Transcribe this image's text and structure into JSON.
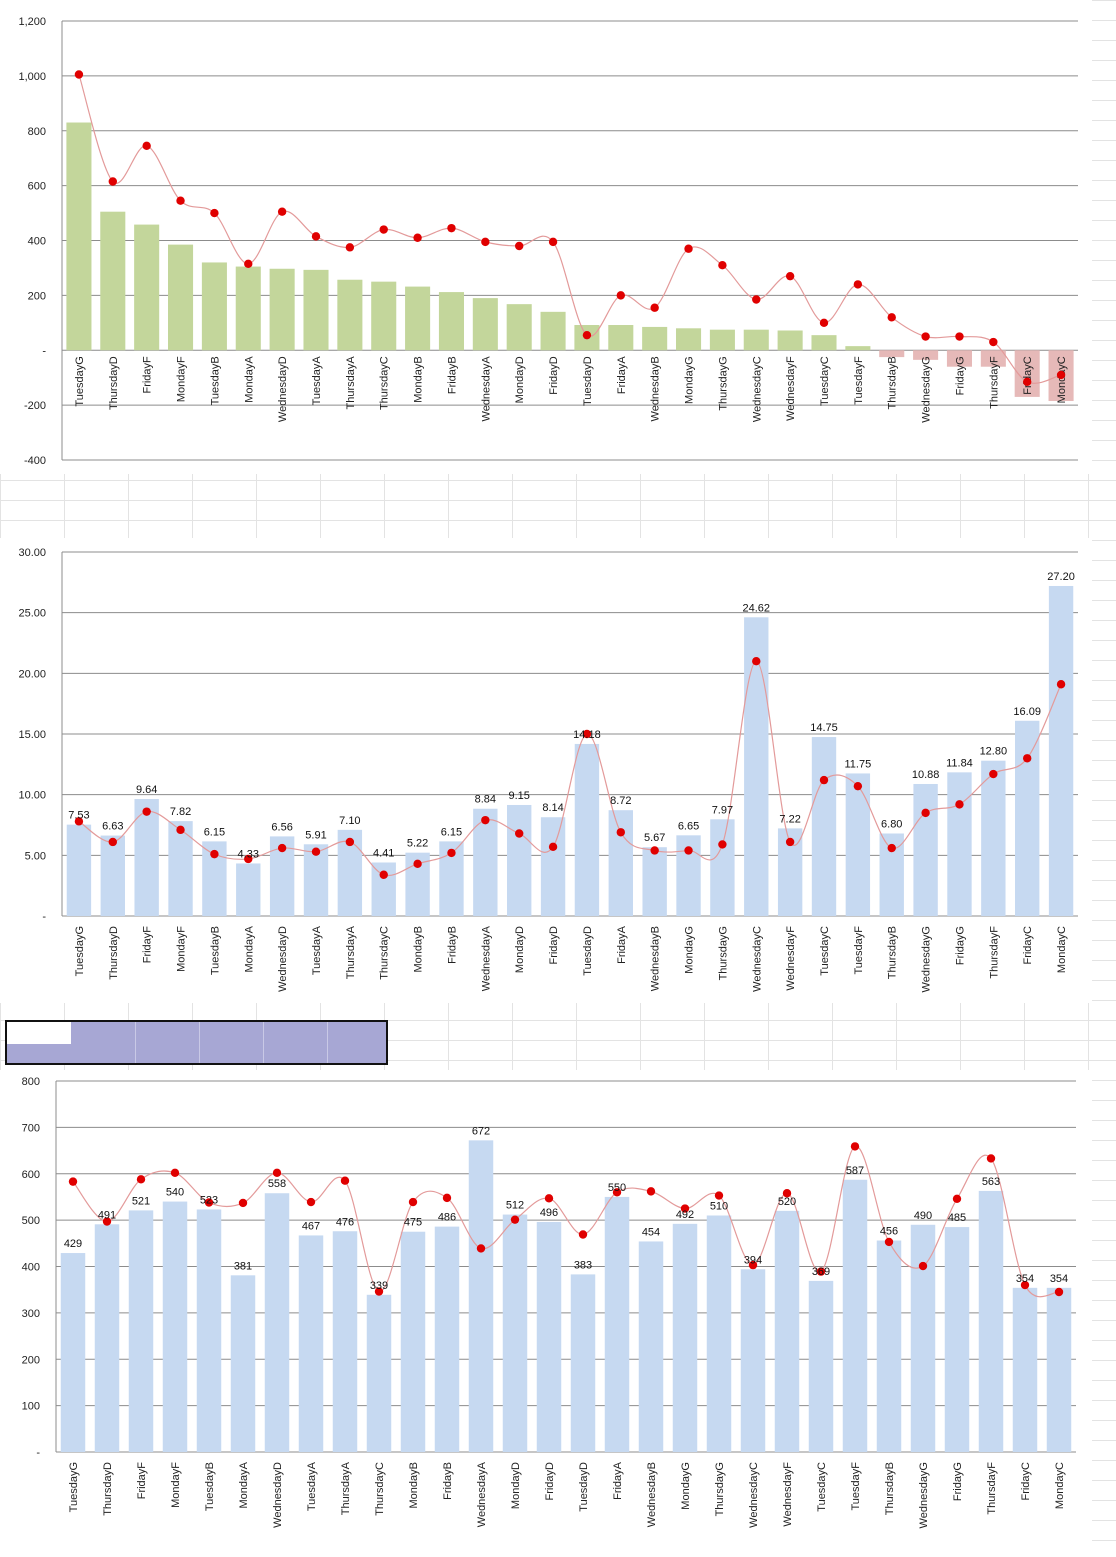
{
  "colors": {
    "bar_positive": "#c3d69b",
    "bar_negative": "#e6b9b8",
    "bar_blue": "#c6d9f1",
    "line": "#e39a9a",
    "marker": "#e00000",
    "gridline": "#8c8c8c"
  },
  "chart_data": [
    {
      "type": "bar",
      "categories": [
        "TuesdayG",
        "ThursdayD",
        "FridayF",
        "MondayF",
        "TuesdayB",
        "MondayA",
        "WednesdayD",
        "TuesdayA",
        "ThursdayA",
        "ThursdayC",
        "MondayB",
        "FridayB",
        "WednesdayA",
        "MondayD",
        "FridayD",
        "TuesdayD",
        "FridayA",
        "WednesdayB",
        "MondayG",
        "ThursdayG",
        "WednesdayC",
        "WednesdayF",
        "TuesdayC",
        "TuesdayF",
        "ThursdayB",
        "WednesdayG",
        "FridayG",
        "ThursdayF",
        "FridayC",
        "MondayC"
      ],
      "ylim": [
        -400,
        1200
      ],
      "yticks": [
        -400,
        -200,
        0,
        200,
        400,
        600,
        800,
        1000,
        1200
      ],
      "ytick_labels": [
        "-400",
        "-200",
        "-",
        "200",
        "400",
        "600",
        "800",
        "1,000",
        "1,200"
      ],
      "grid": true,
      "data_labels": false,
      "series": [
        {
          "kind": "bar",
          "values": [
            830,
            505,
            458,
            385,
            320,
            305,
            297,
            293,
            257,
            250,
            232,
            212,
            190,
            168,
            140,
            92,
            92,
            85,
            80,
            75,
            75,
            72,
            55,
            15,
            -25,
            -35,
            -60,
            -60,
            -170,
            -185
          ]
        },
        {
          "kind": "line",
          "values": [
            1005,
            615,
            745,
            545,
            500,
            315,
            505,
            415,
            375,
            440,
            410,
            445,
            395,
            380,
            395,
            55,
            200,
            155,
            370,
            310,
            185,
            270,
            100,
            240,
            120,
            50,
            50,
            30,
            -115,
            -90
          ]
        }
      ]
    },
    {
      "type": "bar",
      "categories": [
        "TuesdayG",
        "ThursdayD",
        "FridayF",
        "MondayF",
        "TuesdayB",
        "MondayA",
        "WednesdayD",
        "TuesdayA",
        "ThursdayA",
        "ThursdayC",
        "MondayB",
        "FridayB",
        "WednesdayA",
        "MondayD",
        "FridayD",
        "TuesdayD",
        "FridayA",
        "WednesdayB",
        "MondayG",
        "ThursdayG",
        "WednesdayC",
        "WednesdayF",
        "TuesdayC",
        "TuesdayF",
        "ThursdayB",
        "WednesdayG",
        "FridayG",
        "ThursdayF",
        "FridayC",
        "MondayC"
      ],
      "ylim": [
        0,
        30
      ],
      "yticks": [
        0,
        5,
        10,
        15,
        20,
        25,
        30
      ],
      "ytick_labels": [
        "-",
        "5.00",
        "10.00",
        "15.00",
        "20.00",
        "25.00",
        "30.00"
      ],
      "grid": true,
      "data_labels": true,
      "series": [
        {
          "kind": "bar",
          "values": [
            7.53,
            6.63,
            9.64,
            7.82,
            6.15,
            4.33,
            6.56,
            5.91,
            7.1,
            4.41,
            5.22,
            6.15,
            8.84,
            9.15,
            8.14,
            14.18,
            8.72,
            5.67,
            6.65,
            7.97,
            24.62,
            7.22,
            14.75,
            11.75,
            6.8,
            10.88,
            11.84,
            12.8,
            16.09,
            27.2
          ],
          "labels": [
            "7.53",
            "6.63",
            "9.64",
            "7.82",
            "6.15",
            "4.33",
            "6.56",
            "5.91",
            "7.10",
            "4.41",
            "5.22",
            "6.15",
            "8.84",
            "9.15",
            "8.14",
            "14.18",
            "8.72",
            "5.67",
            "6.65",
            "7.97",
            "24.62",
            "7.22",
            "14.75",
            "11.75",
            "6.80",
            "10.88",
            "11.84",
            "12.80",
            "16.09",
            "27.20"
          ]
        },
        {
          "kind": "line",
          "values": [
            7.8,
            6.1,
            8.6,
            7.1,
            5.1,
            4.7,
            5.6,
            5.3,
            6.1,
            3.4,
            4.3,
            5.2,
            7.9,
            6.8,
            5.7,
            15.0,
            6.9,
            5.4,
            5.4,
            5.9,
            21.0,
            6.1,
            11.2,
            10.7,
            5.6,
            8.5,
            9.2,
            11.7,
            13.0,
            19.1
          ]
        }
      ]
    },
    {
      "type": "bar",
      "categories": [
        "TuesdayG",
        "ThursdayD",
        "FridayF",
        "MondayF",
        "TuesdayB",
        "MondayA",
        "WednesdayD",
        "TuesdayA",
        "ThursdayA",
        "ThursdayC",
        "MondayB",
        "FridayB",
        "WednesdayA",
        "MondayD",
        "FridayD",
        "TuesdayD",
        "FridayA",
        "WednesdayB",
        "MondayG",
        "ThursdayG",
        "WednesdayC",
        "WednesdayF",
        "TuesdayC",
        "TuesdayF",
        "ThursdayB",
        "WednesdayG",
        "FridayG",
        "ThursdayF",
        "FridayC",
        "MondayC"
      ],
      "ylim": [
        0,
        800
      ],
      "yticks": [
        0,
        100,
        200,
        300,
        400,
        500,
        600,
        700,
        800
      ],
      "ytick_labels": [
        "-",
        "100",
        "200",
        "300",
        "400",
        "500",
        "600",
        "700",
        "800"
      ],
      "grid": true,
      "data_labels": true,
      "series": [
        {
          "kind": "bar",
          "values": [
            429,
            491,
            521,
            540,
            523,
            381,
            558,
            467,
            476,
            339,
            475,
            486,
            672,
            512,
            496,
            383,
            550,
            454,
            492,
            510,
            394,
            520,
            369,
            587,
            456,
            490,
            485,
            563,
            354,
            354
          ],
          "labels": [
            "429",
            "491",
            "521",
            "540",
            "523",
            "381",
            "558",
            "467",
            "476",
            "339",
            "475",
            "486",
            "672",
            "512",
            "496",
            "383",
            "550",
            "454",
            "492",
            "510",
            "394",
            "520",
            "369",
            "587",
            "456",
            "490",
            "485",
            "563",
            "354",
            "354"
          ]
        },
        {
          "kind": "line",
          "values": [
            583,
            497,
            588,
            602,
            538,
            537,
            602,
            539,
            585,
            346,
            539,
            548,
            439,
            501,
            547,
            469,
            560,
            562,
            525,
            553,
            403,
            558,
            389,
            659,
            453,
            401,
            546,
            633,
            360,
            345
          ]
        }
      ]
    }
  ]
}
